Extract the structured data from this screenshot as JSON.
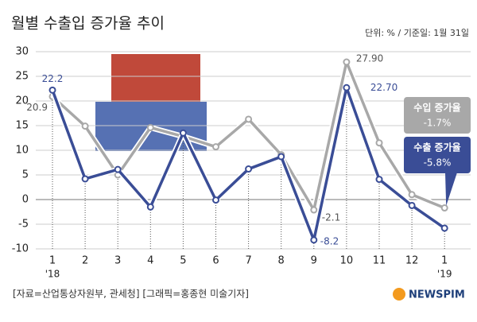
{
  "chart_data": {
    "type": "line",
    "title": "월별 수출입 증가율 추이",
    "subtitle": "단위: % / 기준일: 1월 31일",
    "source": "[자료=산업통상자원부, 관세청] [그래픽=홍종현 미술기자]",
    "logo": "NEWSPIM",
    "categories": [
      "1",
      "2",
      "3",
      "4",
      "5",
      "6",
      "7",
      "8",
      "9",
      "10",
      "11",
      "12",
      "1"
    ],
    "year_labels": [
      "'18",
      "'19"
    ],
    "series": [
      {
        "name": "수출 증가율",
        "color": "#3a4d96",
        "values": [
          22.2,
          4.2,
          6.1,
          -1.5,
          13.5,
          -0.1,
          6.2,
          8.7,
          -8.2,
          22.7,
          4.1,
          -1.2,
          -5.8
        ],
        "value_labels": [
          "22.2",
          null,
          null,
          null,
          null,
          null,
          null,
          null,
          "-8.2",
          "22.70",
          null,
          null,
          "-5.8%"
        ]
      },
      {
        "name": "수입 증가율",
        "color": "#a8a8a8",
        "values": [
          20.9,
          14.9,
          5.0,
          14.6,
          12.8,
          10.7,
          16.3,
          9.1,
          -2.1,
          27.9,
          11.5,
          1.0,
          -1.7
        ],
        "value_labels": [
          "20.9",
          null,
          null,
          null,
          null,
          null,
          null,
          null,
          "-2.1",
          "27.90",
          null,
          null,
          "-1.7%"
        ]
      }
    ],
    "ylim": [
      -10,
      30
    ],
    "yticks": [
      -10,
      -5,
      0,
      5,
      10,
      15,
      20,
      25,
      30
    ],
    "grid": true
  }
}
